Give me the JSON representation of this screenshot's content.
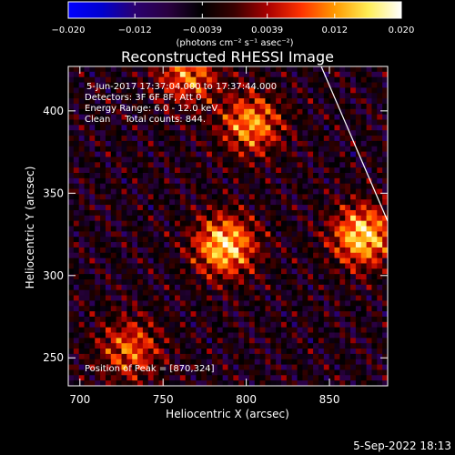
{
  "chart_data": {
    "type": "heatmap",
    "title": "Reconstructed RHESSI Image",
    "xlabel": "Heliocentric X (arcsec)",
    "ylabel": "Heliocentric Y (arcsec)",
    "xlim": [
      693,
      885
    ],
    "ylim": [
      233,
      427
    ],
    "x_ticks": [
      700,
      750,
      800,
      850
    ],
    "y_ticks": [
      250,
      300,
      350,
      400
    ],
    "colorbar": {
      "range": [
        -0.02,
        0.02
      ],
      "tick_values": [
        -0.02,
        -0.012,
        -0.0039,
        0.0039,
        0.012,
        0.02
      ],
      "tick_labels": [
        "−0.020",
        "−0.012",
        "−0.0039",
        "0.0039",
        "0.012",
        "0.020"
      ],
      "units_label": "(photons cm⁻² s⁻¹ asec⁻²)",
      "colormap": [
        "#0000ff",
        "#0000d0",
        "#2a0070",
        "#2a0040",
        "#000000",
        "#3a0000",
        "#aa0000",
        "#ff3300",
        "#ff9900",
        "#ffee55",
        "#ffffff"
      ]
    },
    "annotations": [
      "5-Jun-2017 17:37:04.000 to 17:37:44.000",
      "Detectors: 3F 6F 8F, Att 0",
      "Energy Range: 6.0 - 12.0 keV",
      "Clean     Total counts: 844.",
      "Position of Peak = [870,324]"
    ],
    "sources": [
      {
        "x": 787,
        "y": 318,
        "peak": 0.02
      },
      {
        "x": 870,
        "y": 324,
        "peak": 0.02
      },
      {
        "x": 803,
        "y": 392,
        "peak": 0.016
      },
      {
        "x": 765,
        "y": 422,
        "peak": 0.014
      },
      {
        "x": 730,
        "y": 255,
        "peak": 0.013
      }
    ],
    "grid": false
  },
  "footer_date": "5-Sep-2022 18:13"
}
